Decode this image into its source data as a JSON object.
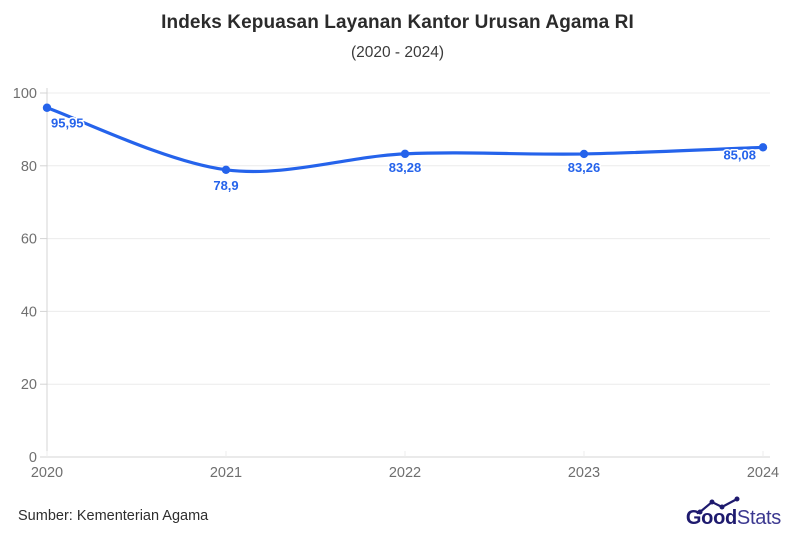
{
  "header": {
    "title": "Indeks Kepuasan Layanan Kantor Urusan Agama RI",
    "subtitle": "(2020 - 2024)"
  },
  "chart_data": {
    "type": "line",
    "title": "Indeks Kepuasan Layanan Kantor Urusan Agama RI",
    "subtitle": "(2020 - 2024)",
    "categories": [
      "2020",
      "2021",
      "2022",
      "2023",
      "2024"
    ],
    "values": [
      95.95,
      78.9,
      83.28,
      83.26,
      85.08
    ],
    "value_labels": [
      "95,95",
      "78,9",
      "83,28",
      "83,26",
      "85,08"
    ],
    "xlabel": "",
    "ylabel": "",
    "ylim": [
      0,
      100
    ],
    "y_ticks": [
      0,
      20,
      40,
      60,
      80,
      100
    ],
    "grid": "horizontal-only",
    "legend_position": "none",
    "line_style": "smooth",
    "marker": "circle",
    "line_color": "#2563eb"
  },
  "footer": {
    "source": "Sumber: Kementerian Agama",
    "logo_text_bold": "Good",
    "logo_text_light": "Stats"
  },
  "colors": {
    "accent_blue": "#2563eb",
    "grid": "#ececec",
    "axis": "#d4d4d4",
    "axis_label": "#6f6f6f",
    "title_text": "#2b2b2b",
    "logo_navy": "#1e1a6e",
    "logo_navy_light": "#3b3890"
  }
}
